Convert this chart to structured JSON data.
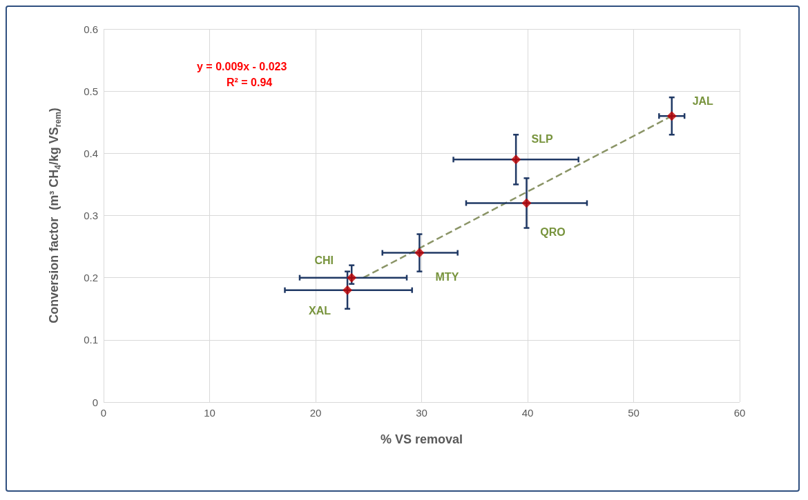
{
  "chart_data": {
    "type": "scatter",
    "xlabel": "% VS removal",
    "ylabel": "Conversion factor  (m³ CH$_{4}$/kg VS$_{rem}$)",
    "xlim": [
      0,
      60
    ],
    "xticks": [
      0,
      10,
      20,
      30,
      40,
      50,
      60
    ],
    "ylim": [
      0,
      0.6
    ],
    "yticks": [
      0,
      0.1,
      0.2,
      0.3,
      0.4,
      0.5,
      0.6
    ],
    "grid": true,
    "series": [
      {
        "color": "#c00000",
        "marker": "diamond",
        "x": [
          53.6,
          38.9,
          39.9,
          29.8,
          23.4,
          23.0
        ],
        "values": [
          0.46,
          0.39,
          0.32,
          0.24,
          0.2,
          0.18
        ],
        "errors": [
          [
            0.43,
            0.49
          ],
          [
            0.35,
            0.43
          ],
          [
            0.28,
            0.36
          ],
          [
            0.21,
            0.27
          ],
          [
            0.19,
            0.22
          ],
          [
            0.15,
            0.21
          ]
        ],
        "xerrors": [
          [
            52.4,
            54.8
          ],
          [
            33.0,
            44.8
          ],
          [
            34.2,
            45.6
          ],
          [
            26.3,
            33.4
          ],
          [
            18.5,
            28.6
          ],
          [
            17.1,
            29.1
          ]
        ]
      },
      {
        "type": "line",
        "color": "#8a9466",
        "line_style": "dashed",
        "marker": "none",
        "x": [
          24.5,
          53.6
        ],
        "values": [
          0.2,
          0.46
        ]
      }
    ],
    "annotations": [
      "y = 0.009x - 0.023",
      "R² = 0.94",
      {
        "text": "JAL",
        "x": 53.6,
        "y": 0.46
      },
      {
        "text": "SLP",
        "x": 38.9,
        "y": 0.39
      },
      {
        "text": "QRO",
        "x": 39.9,
        "y": 0.32
      },
      {
        "text": "MTY",
        "x": 29.8,
        "y": 0.24
      },
      {
        "text": "CHI",
        "x": 23.4,
        "y": 0.2
      },
      {
        "text": "XAL",
        "x": 23.0,
        "y": 0.18
      }
    ]
  }
}
